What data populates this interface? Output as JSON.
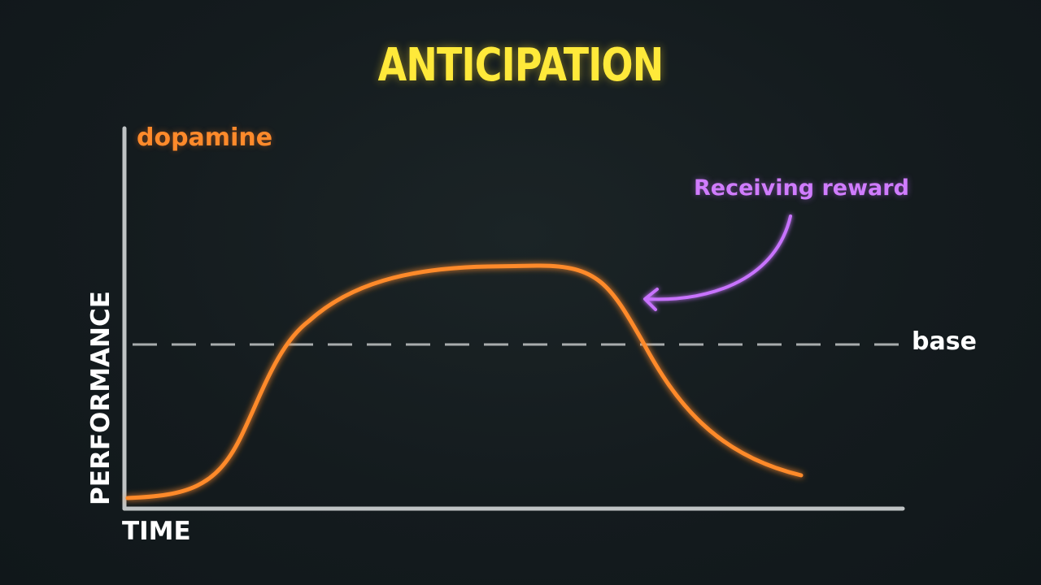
{
  "title": "ANTICIPATION",
  "curve_label": "dopamine",
  "annotation": "Receiving reward",
  "baseline_label": "base",
  "x_axis_label": "TIME",
  "y_axis_label": "PERFORMANCE",
  "colors": {
    "title": "#ffe93a",
    "curve": "#ff8a2b",
    "annotation": "#d07cff",
    "axes": "#bfc3c4",
    "baseline": "#a8acad",
    "text": "#ffffff"
  }
}
